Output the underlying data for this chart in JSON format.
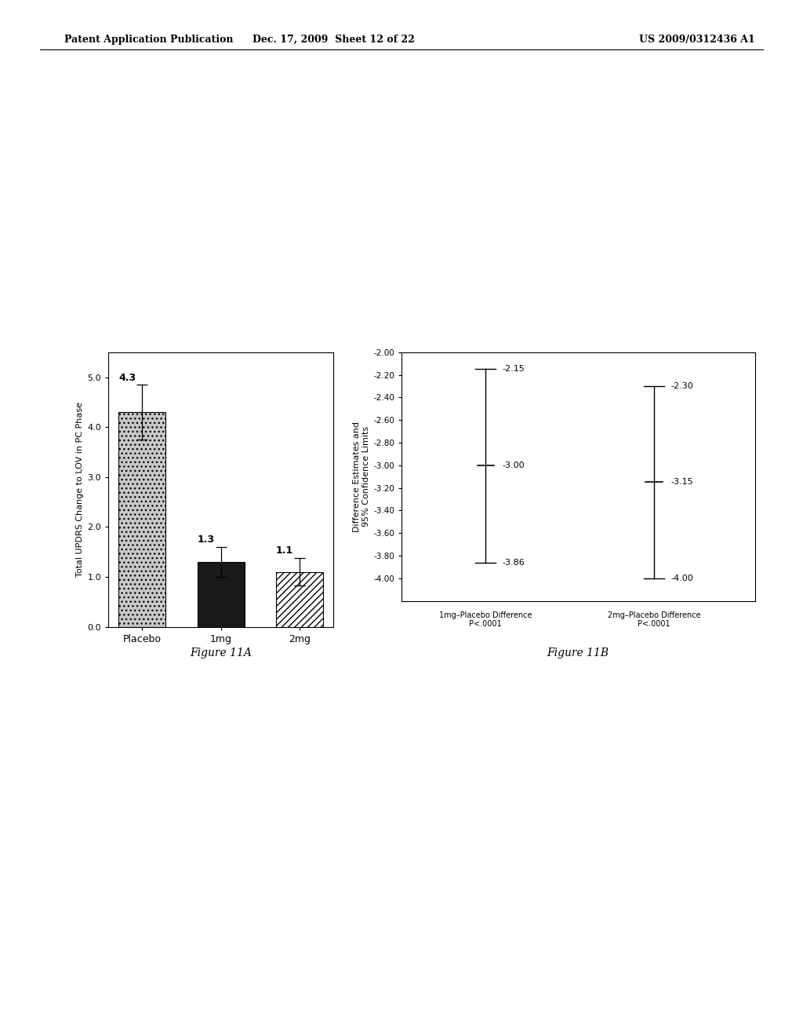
{
  "header_left": "Patent Application Publication",
  "header_center": "Dec. 17, 2009  Sheet 12 of 22",
  "header_right": "US 2009/0312436 A1",
  "fig11A": {
    "categories": [
      "Placebo",
      "1mg",
      "2mg"
    ],
    "values": [
      4.3,
      1.3,
      1.1
    ],
    "errors": [
      0.55,
      0.3,
      0.28
    ],
    "ylabel": "Total UPDRS Change to LOV in PC Phase",
    "ylim": [
      0.0,
      5.5
    ],
    "yticks": [
      0.0,
      1.0,
      2.0,
      3.0,
      4.0,
      5.0
    ],
    "bar_colors": [
      "#c8c8c8",
      "#1a1a1a",
      "#ffffff"
    ],
    "caption": "Figure 11A"
  },
  "fig11B": {
    "groups": [
      "1mg–Placebo Difference\nP<.0001",
      "2mg–Placebo Difference\nP<.0001"
    ],
    "means": [
      -3.0,
      -3.15
    ],
    "upper_ci": [
      -2.15,
      -2.3
    ],
    "lower_ci": [
      -3.86,
      -4.0
    ],
    "ylabel": "Difference Estimates and\n95% Confidence Limits",
    "ylim": [
      -4.2,
      -2.0
    ],
    "yticks": [
      -4.0,
      -3.8,
      -3.6,
      -3.4,
      -3.2,
      -3.0,
      -2.8,
      -2.6,
      -2.4,
      -2.2,
      -2.0
    ],
    "ytick_labels": [
      "-4.00",
      "-3.80",
      "-3.60",
      "-3.40",
      "-3.20",
      "-3.00",
      "-2.80",
      "-2.60",
      "-2.40",
      "-2.20",
      "-2.00"
    ],
    "caption": "Figure 11B"
  },
  "background_color": "#ffffff"
}
